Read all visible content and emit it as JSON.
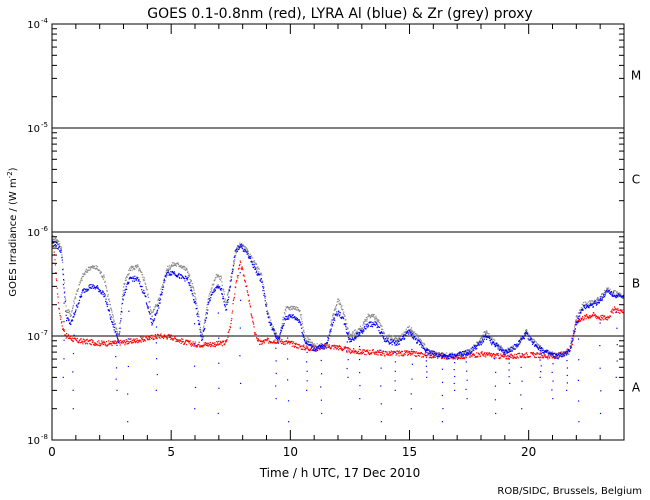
{
  "chart_data": {
    "type": "scatter",
    "title": "GOES 0.1-0.8nm (red), LYRA Al (blue) & Zr (grey) proxy",
    "xlabel": "Time / h UTC, 17 Dec 2010",
    "ylabel_prefix": "GOES Irradiance / (W m",
    "ylabel_exp": "-2",
    "ylabel_suffix": ")",
    "credit": "ROB/SIDC, Brussels, Belgium",
    "x_range": [
      0,
      24
    ],
    "y_range": [
      1e-08,
      0.0001
    ],
    "y_scale": "log",
    "x_ticks": [
      "0",
      "5",
      "10",
      "15",
      "20"
    ],
    "x_tick_values": [
      0,
      5,
      10,
      15,
      20
    ],
    "y_ticks": [
      {
        "base": "10",
        "exp": "-8",
        "value": 1e-08
      },
      {
        "base": "10",
        "exp": "-7",
        "value": 1e-07
      },
      {
        "base": "10",
        "exp": "-6",
        "value": 1e-06
      },
      {
        "base": "10",
        "exp": "-5",
        "value": 1e-05
      },
      {
        "base": "10",
        "exp": "-4",
        "value": 0.0001
      }
    ],
    "class_thresholds": [
      1e-07,
      1e-06,
      1e-05
    ],
    "flare_classes": [
      {
        "label": "A",
        "value": 3.2e-08
      },
      {
        "label": "B",
        "value": 3.2e-07
      },
      {
        "label": "C",
        "value": 3.2e-06
      },
      {
        "label": "M",
        "value": 3.2e-05
      }
    ],
    "series": [
      {
        "name": "GOES 0.1-0.8nm",
        "color": "#ff0000",
        "points": [
          [
            0,
            8.5e-07
          ],
          [
            0.1,
            6.5e-07
          ],
          [
            0.2,
            3.2e-07
          ],
          [
            0.3,
            1.8e-07
          ],
          [
            0.45,
            1.2e-07
          ],
          [
            0.6,
            1e-07
          ],
          [
            1,
            9e-08
          ],
          [
            1.5,
            8.8e-08
          ],
          [
            2,
            8.5e-08
          ],
          [
            2.5,
            8.5e-08
          ],
          [
            3,
            8.7e-08
          ],
          [
            3.5,
            9e-08
          ],
          [
            4,
            9.5e-08
          ],
          [
            4.5,
            1e-07
          ],
          [
            5,
            9.8e-08
          ],
          [
            5.5,
            8.8e-08
          ],
          [
            6,
            8.3e-08
          ],
          [
            6.5,
            8.3e-08
          ],
          [
            7,
            8.4e-08
          ],
          [
            7.3,
            8.6e-08
          ],
          [
            7.5,
            1.3e-07
          ],
          [
            7.7,
            3e-07
          ],
          [
            7.9,
            5e-07
          ],
          [
            8.1,
            3.5e-07
          ],
          [
            8.3,
            2e-07
          ],
          [
            8.5,
            1.1e-07
          ],
          [
            8.7,
            8.5e-08
          ],
          [
            9,
            9e-08
          ],
          [
            9.5,
            9e-08
          ],
          [
            10,
            8.5e-08
          ],
          [
            10.5,
            7.8e-08
          ],
          [
            11,
            7.5e-08
          ],
          [
            11.5,
            8e-08
          ],
          [
            12,
            7.8e-08
          ],
          [
            12.5,
            7.2e-08
          ],
          [
            13,
            7e-08
          ],
          [
            13.5,
            7e-08
          ],
          [
            14,
            6.8e-08
          ],
          [
            14.5,
            6.8e-08
          ],
          [
            15,
            6.8e-08
          ],
          [
            15.5,
            6.6e-08
          ],
          [
            16,
            6.5e-08
          ],
          [
            16.5,
            6.3e-08
          ],
          [
            17,
            6.3e-08
          ],
          [
            17.5,
            6.5e-08
          ],
          [
            18,
            6.7e-08
          ],
          [
            18.5,
            6.5e-08
          ],
          [
            19,
            6.3e-08
          ],
          [
            19.5,
            6.4e-08
          ],
          [
            20,
            6.6e-08
          ],
          [
            20.5,
            6.5e-08
          ],
          [
            21,
            6.3e-08
          ],
          [
            21.5,
            6.8e-08
          ],
          [
            21.8,
            7.8e-08
          ],
          [
            22,
            1.4e-07
          ],
          [
            22.3,
            1.5e-07
          ],
          [
            22.7,
            1.6e-07
          ],
          [
            23,
            1.5e-07
          ],
          [
            23.3,
            1.5e-07
          ],
          [
            23.6,
            1.8e-07
          ],
          [
            24,
            1.7e-07
          ]
        ]
      },
      {
        "name": "LYRA Zr proxy",
        "color": "#888888",
        "points": [
          [
            0,
            9e-07
          ],
          [
            0.2,
            8.5e-07
          ],
          [
            0.4,
            7e-07
          ],
          [
            0.6,
            1.8e-07
          ],
          [
            0.8,
            1.6e-07
          ],
          [
            1,
            2.5e-07
          ],
          [
            1.3,
            3.8e-07
          ],
          [
            1.6,
            4.6e-07
          ],
          [
            1.9,
            4.5e-07
          ],
          [
            2.2,
            3.6e-07
          ],
          [
            2.5,
            1.7e-07
          ],
          [
            2.8,
            1e-07
          ],
          [
            3,
            3e-07
          ],
          [
            3.3,
            4.5e-07
          ],
          [
            3.6,
            4.6e-07
          ],
          [
            3.9,
            3.4e-07
          ],
          [
            4.2,
            1.6e-07
          ],
          [
            4.5,
            2.3e-07
          ],
          [
            4.8,
            4.3e-07
          ],
          [
            5.1,
            4.9e-07
          ],
          [
            5.4,
            4.8e-07
          ],
          [
            5.7,
            4.2e-07
          ],
          [
            6,
            2.5e-07
          ],
          [
            6.3,
            1e-07
          ],
          [
            6.6,
            2.5e-07
          ],
          [
            6.9,
            3.8e-07
          ],
          [
            7.1,
            3.6e-07
          ],
          [
            7.3,
            2e-07
          ],
          [
            7.5,
            3.5e-07
          ],
          [
            7.7,
            6e-07
          ],
          [
            7.9,
            7.6e-07
          ],
          [
            8.2,
            6.5e-07
          ],
          [
            8.5,
            5e-07
          ],
          [
            8.8,
            3.8e-07
          ],
          [
            9.1,
            1.5e-07
          ],
          [
            9.5,
            9e-08
          ],
          [
            9.8,
            1.8e-07
          ],
          [
            10.1,
            1.9e-07
          ],
          [
            10.4,
            1.8e-07
          ],
          [
            10.6,
            1e-07
          ],
          [
            11,
            8e-08
          ],
          [
            11.5,
            8e-08
          ],
          [
            11.8,
            1.6e-07
          ],
          [
            12,
            2.2e-07
          ],
          [
            12.2,
            1.8e-07
          ],
          [
            12.5,
            1e-07
          ],
          [
            13,
            1.2e-07
          ],
          [
            13.3,
            1.6e-07
          ],
          [
            13.6,
            1.5e-07
          ],
          [
            14,
            1e-07
          ],
          [
            14.5,
            9e-08
          ],
          [
            15,
            1.2e-07
          ],
          [
            15.3,
            1e-07
          ],
          [
            15.8,
            7e-08
          ],
          [
            16.5,
            6.5e-08
          ],
          [
            17,
            6.5e-08
          ],
          [
            17.5,
            7e-08
          ],
          [
            18,
            9e-08
          ],
          [
            18.2,
            1.1e-07
          ],
          [
            18.5,
            9e-08
          ],
          [
            19,
            7e-08
          ],
          [
            19.5,
            8e-08
          ],
          [
            19.9,
            1.1e-07
          ],
          [
            20.2,
            9e-08
          ],
          [
            20.7,
            7e-08
          ],
          [
            21.2,
            6.5e-08
          ],
          [
            21.7,
            7e-08
          ],
          [
            22,
            1.5e-07
          ],
          [
            22.3,
            2e-07
          ],
          [
            22.7,
            2.1e-07
          ],
          [
            23,
            2.3e-07
          ],
          [
            23.3,
            2.8e-07
          ],
          [
            23.6,
            2.6e-07
          ],
          [
            24,
            2.4e-07
          ]
        ]
      },
      {
        "name": "LYRA Al proxy",
        "color": "#0000ff",
        "points": [
          [
            0,
            8e-07
          ],
          [
            0.2,
            7.5e-07
          ],
          [
            0.4,
            6.5e-07
          ],
          [
            0.6,
            1.5e-07
          ],
          [
            0.8,
            1.3e-07
          ],
          [
            1,
            1.8e-07
          ],
          [
            1.3,
            2.7e-07
          ],
          [
            1.6,
            3e-07
          ],
          [
            1.9,
            2.9e-07
          ],
          [
            2.2,
            2.5e-07
          ],
          [
            2.5,
            1.4e-07
          ],
          [
            2.8,
            9e-08
          ],
          [
            3,
            2.5e-07
          ],
          [
            3.3,
            3.6e-07
          ],
          [
            3.6,
            3.5e-07
          ],
          [
            3.9,
            2.5e-07
          ],
          [
            4.2,
            1.3e-07
          ],
          [
            4.5,
            2e-07
          ],
          [
            4.8,
            4e-07
          ],
          [
            5.1,
            4.1e-07
          ],
          [
            5.4,
            3.7e-07
          ],
          [
            5.7,
            3.5e-07
          ],
          [
            6,
            2.1e-07
          ],
          [
            6.3,
            9e-08
          ],
          [
            6.6,
            2.2e-07
          ],
          [
            6.9,
            3e-07
          ],
          [
            7.1,
            2.8e-07
          ],
          [
            7.3,
            1.7e-07
          ],
          [
            7.5,
            3.3e-07
          ],
          [
            7.7,
            6.5e-07
          ],
          [
            7.9,
            7.5e-07
          ],
          [
            8.2,
            6.2e-07
          ],
          [
            8.5,
            4.5e-07
          ],
          [
            8.8,
            3.4e-07
          ],
          [
            9.1,
            1.4e-07
          ],
          [
            9.5,
            9e-08
          ],
          [
            9.8,
            1.5e-07
          ],
          [
            10.1,
            1.55e-07
          ],
          [
            10.4,
            1.4e-07
          ],
          [
            10.6,
            9e-08
          ],
          [
            11,
            7.5e-08
          ],
          [
            11.5,
            8e-08
          ],
          [
            11.8,
            1.4e-07
          ],
          [
            12,
            1.7e-07
          ],
          [
            12.2,
            1.5e-07
          ],
          [
            12.5,
            9e-08
          ],
          [
            13,
            1.1e-07
          ],
          [
            13.3,
            1.3e-07
          ],
          [
            13.6,
            1.3e-07
          ],
          [
            14,
            9e-08
          ],
          [
            14.5,
            8.5e-08
          ],
          [
            15,
            1.1e-07
          ],
          [
            15.3,
            9e-08
          ],
          [
            15.8,
            7e-08
          ],
          [
            16.5,
            6.3e-08
          ],
          [
            17,
            6.5e-08
          ],
          [
            17.5,
            7e-08
          ],
          [
            18,
            8.5e-08
          ],
          [
            18.2,
            1e-07
          ],
          [
            18.5,
            8.5e-08
          ],
          [
            19,
            7e-08
          ],
          [
            19.5,
            8e-08
          ],
          [
            19.9,
            1.05e-07
          ],
          [
            20.2,
            8.5e-08
          ],
          [
            20.7,
            7e-08
          ],
          [
            21.2,
            6.3e-08
          ],
          [
            21.7,
            7e-08
          ],
          [
            22,
            1.3e-07
          ],
          [
            22.3,
            1.9e-07
          ],
          [
            22.7,
            2e-07
          ],
          [
            23,
            2.2e-07
          ],
          [
            23.3,
            2.7e-07
          ],
          [
            23.6,
            2.5e-07
          ],
          [
            24,
            2.3e-07
          ]
        ],
        "dips": [
          [
            0.5,
            4e-08
          ],
          [
            0.9,
            2e-08
          ],
          [
            2.7,
            3e-08
          ],
          [
            3.2,
            1.5e-08
          ],
          [
            4.4,
            3e-08
          ],
          [
            6.0,
            2e-08
          ],
          [
            7.0,
            1.8e-08
          ],
          [
            7.9,
            3.5e-08
          ],
          [
            9.4,
            2.5e-08
          ],
          [
            9.9,
            1.5e-08
          ],
          [
            10.7,
            3e-08
          ],
          [
            11.3,
            1.8e-08
          ],
          [
            12.4,
            4e-08
          ],
          [
            12.9,
            2.5e-08
          ],
          [
            13.8,
            1.5e-08
          ],
          [
            14.4,
            3e-08
          ],
          [
            15.1,
            2e-08
          ],
          [
            15.7,
            4e-08
          ],
          [
            16.4,
            1.5e-08
          ],
          [
            16.9,
            3e-08
          ],
          [
            17.4,
            2.5e-08
          ],
          [
            18.6,
            1.8e-08
          ],
          [
            19.2,
            3.5e-08
          ],
          [
            19.7,
            2e-08
          ],
          [
            20.5,
            4e-08
          ],
          [
            21.0,
            2.5e-08
          ],
          [
            21.6,
            3e-08
          ],
          [
            22.1,
            1.5e-08
          ],
          [
            23.0,
            1.8e-08
          ],
          [
            23.7,
            4e-08
          ]
        ]
      }
    ]
  }
}
